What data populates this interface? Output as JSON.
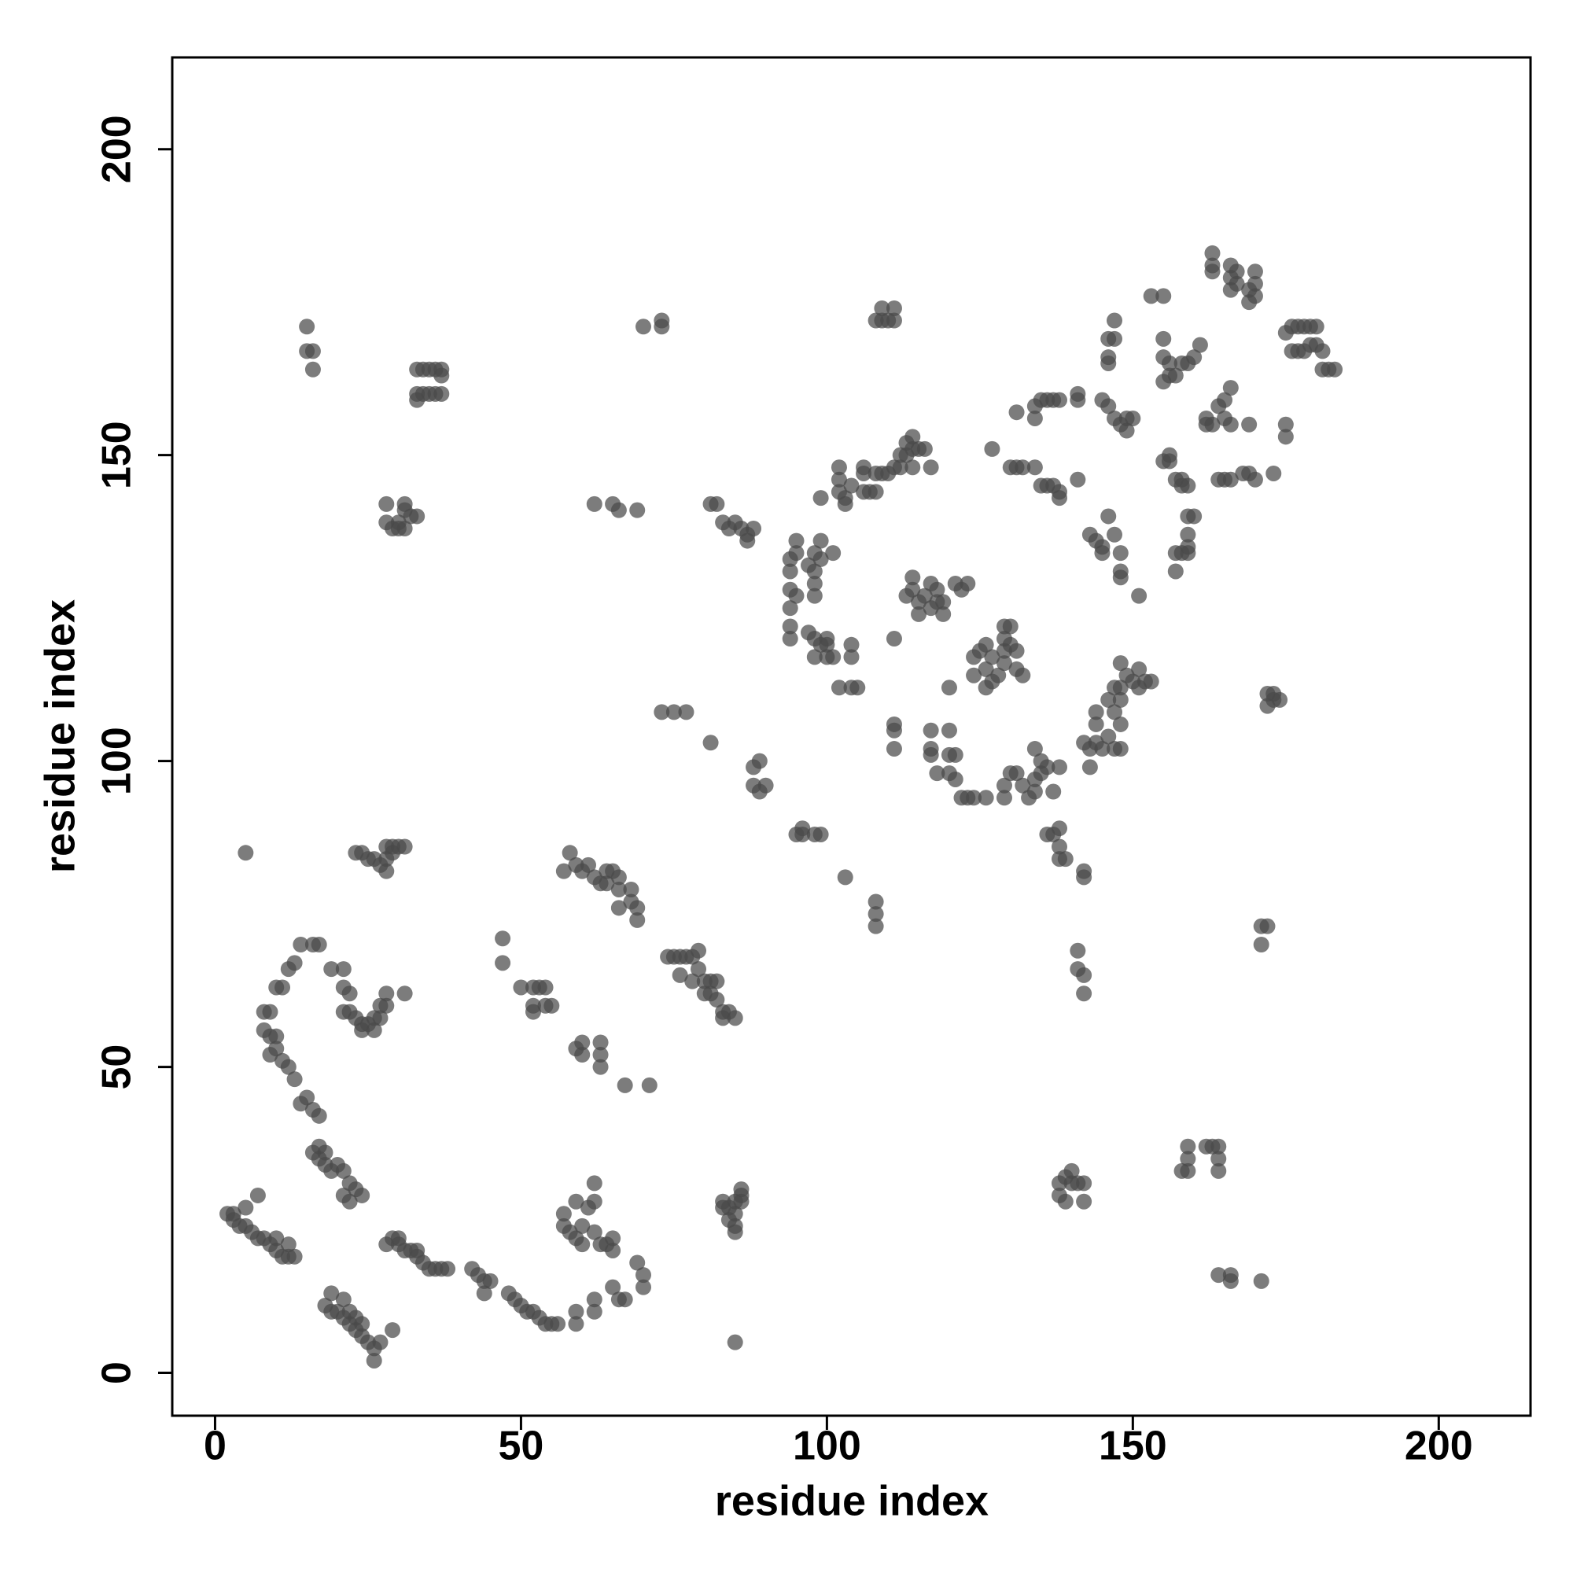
{
  "chart_data": {
    "type": "scatter",
    "x_label": "residue index",
    "y_label": "residue index",
    "color": "#4a4a4a",
    "alpha": 0.72,
    "xlim": [
      -7,
      215
    ],
    "ylim": [
      -7,
      215
    ],
    "xticks": [
      0,
      50,
      100,
      150,
      200
    ],
    "yticks": [
      0,
      50,
      100,
      150,
      200
    ],
    "x": [
      2,
      3,
      4,
      5,
      6,
      7,
      8,
      9,
      10,
      11,
      12,
      13,
      5,
      7,
      3,
      10,
      12,
      18,
      19,
      20,
      21,
      22,
      23,
      24,
      25,
      26,
      26,
      19,
      21,
      22,
      23,
      24,
      29,
      27,
      28,
      29,
      30,
      31,
      32,
      33,
      34,
      35,
      36,
      37,
      38,
      30,
      33,
      42,
      43,
      44,
      45,
      44,
      48,
      49,
      50,
      51,
      52,
      53,
      54,
      55,
      56,
      59,
      59,
      57,
      57,
      58,
      59,
      60,
      61,
      62,
      59,
      62,
      63,
      64,
      60,
      62,
      62,
      62,
      65,
      66,
      67,
      65,
      65,
      70,
      70,
      69,
      17,
      17,
      18,
      19,
      20,
      21,
      22,
      23,
      24,
      21,
      22,
      16,
      18,
      14,
      15,
      16,
      17,
      13,
      12,
      11,
      10,
      9,
      8,
      8,
      9,
      10,
      11,
      12,
      13,
      14,
      16,
      17,
      10,
      9,
      19,
      21,
      21,
      22,
      21,
      22,
      23,
      24,
      24,
      25,
      26,
      27,
      27,
      28,
      28,
      31,
      26,
      23,
      24,
      25,
      26,
      27,
      28,
      28,
      29,
      29,
      30,
      31,
      28,
      5,
      57,
      58,
      59,
      60,
      61,
      62,
      63,
      64,
      65,
      66,
      66,
      68,
      68,
      69,
      69,
      66,
      64,
      50,
      52,
      53,
      54,
      52,
      54,
      55,
      47,
      47,
      52,
      59,
      60,
      60,
      63,
      63,
      63,
      67,
      71,
      74,
      75,
      76,
      77,
      78,
      79,
      79,
      78,
      80,
      80,
      81,
      82,
      82,
      83,
      83,
      84,
      85,
      76,
      81,
      83,
      83,
      84,
      85,
      85,
      86,
      86,
      86,
      85,
      85,
      84,
      85,
      62,
      65,
      66,
      69,
      81,
      82,
      83,
      84,
      85,
      86,
      87,
      88,
      87,
      28,
      29,
      30,
      31,
      31,
      31,
      32,
      33,
      28,
      30,
      15,
      15,
      16,
      16,
      33,
      34,
      35,
      36,
      37,
      37,
      33,
      34,
      35,
      36,
      37,
      33,
      70,
      73,
      73,
      108,
      109,
      109,
      111,
      111,
      110,
      73,
      75,
      77,
      81,
      88,
      89,
      88,
      90,
      89,
      95,
      96,
      96,
      98,
      99,
      103,
      108,
      108,
      108,
      94,
      94,
      95,
      95,
      94,
      95,
      94,
      94,
      94,
      97,
      98,
      98,
      98,
      98,
      99,
      99,
      101,
      97,
      98,
      98,
      99,
      100,
      100,
      100,
      101,
      102,
      104,
      104,
      104,
      105,
      99,
      102,
      102,
      102,
      103,
      103,
      104,
      106,
      107,
      108,
      106,
      106,
      108,
      109,
      110,
      111,
      112,
      112,
      113,
      113,
      114,
      115,
      116,
      114,
      117,
      114,
      113,
      114,
      114,
      115,
      115,
      116,
      117,
      117,
      118,
      118,
      119,
      119,
      121,
      122,
      123,
      111,
      124,
      125,
      126,
      127,
      126,
      127,
      128,
      129,
      129,
      129,
      130,
      130,
      131,
      131,
      132,
      124,
      126,
      129,
      111,
      111,
      111,
      117,
      117,
      117,
      118,
      120,
      120,
      121,
      120,
      121,
      122,
      123,
      124,
      126,
      120,
      129,
      129,
      130,
      131,
      132,
      133,
      134,
      134,
      135,
      135,
      136,
      137,
      138,
      134,
      130,
      131,
      132,
      127,
      131,
      134,
      134,
      135,
      136,
      137,
      138,
      135,
      136,
      137,
      134,
      138,
      138,
      141,
      141,
      141,
      136,
      137,
      138,
      138,
      139,
      138,
      142,
      142,
      141,
      141,
      142,
      142,
      138,
      138,
      139,
      139,
      140,
      140,
      141,
      142,
      142,
      142,
      143,
      144,
      144,
      144,
      145,
      146,
      146,
      147,
      147,
      148,
      148,
      148,
      149,
      150,
      151,
      151,
      152,
      153,
      143,
      148,
      148,
      147,
      143,
      144,
      145,
      145,
      146,
      147,
      148,
      148,
      148,
      151,
      145,
      146,
      147,
      148,
      149,
      150,
      146,
      146,
      146,
      147,
      147,
      149,
      153,
      155,
      155,
      155,
      156,
      156,
      157,
      158,
      159,
      160,
      161,
      155,
      155,
      156,
      156,
      158,
      158,
      159,
      157,
      159,
      160,
      159,
      159,
      159,
      158,
      157,
      157,
      162,
      162,
      163,
      164,
      165,
      165,
      166,
      166,
      169,
      164,
      165,
      166,
      168,
      169,
      170,
      173,
      163,
      163,
      163,
      166,
      166,
      167,
      167,
      166,
      170,
      170,
      170,
      169,
      169,
      175,
      176,
      177,
      178,
      179,
      180,
      176,
      177,
      178,
      179,
      180,
      181,
      181,
      182,
      183,
      175,
      175,
      172,
      173,
      172,
      173,
      174,
      171,
      172,
      171,
      158,
      159,
      159,
      159,
      162,
      163,
      164,
      164,
      164,
      164,
      166,
      166,
      171
    ],
    "values": [
      26,
      25,
      24,
      24,
      23,
      22,
      22,
      21,
      20,
      19,
      19,
      19,
      27,
      29,
      26,
      22,
      21,
      11,
      10,
      10,
      9,
      8,
      7,
      6,
      5,
      4,
      2,
      13,
      12,
      10,
      9,
      8,
      7,
      5,
      21,
      22,
      21,
      20,
      20,
      19,
      18,
      17,
      17,
      17,
      17,
      22,
      20,
      17,
      16,
      15,
      15,
      13,
      13,
      12,
      11,
      10,
      10,
      9,
      8,
      8,
      8,
      8,
      10,
      26,
      24,
      23,
      22,
      24,
      27,
      28,
      28,
      23,
      21,
      21,
      21,
      31,
      12,
      10,
      14,
      12,
      12,
      20,
      22,
      16,
      14,
      18,
      37,
      35,
      34,
      33,
      34,
      33,
      31,
      30,
      29,
      29,
      28,
      36,
      36,
      44,
      45,
      43,
      42,
      48,
      50,
      51,
      53,
      55,
      56,
      59,
      59,
      63,
      63,
      66,
      67,
      70,
      70,
      70,
      55,
      52,
      66,
      66,
      63,
      62,
      59,
      59,
      58,
      57,
      56,
      57,
      56,
      58,
      60,
      60,
      62,
      62,
      58,
      85,
      85,
      84,
      84,
      83,
      82,
      84,
      85,
      86,
      86,
      86,
      86,
      85,
      82,
      85,
      83,
      82,
      83,
      81,
      80,
      80,
      82,
      79,
      81,
      79,
      77,
      76,
      74,
      76,
      82,
      63,
      63,
      63,
      63,
      60,
      60,
      60,
      71,
      67,
      59,
      53,
      54,
      52,
      54,
      52,
      50,
      47,
      47,
      68,
      68,
      68,
      68,
      68,
      69,
      66,
      64,
      64,
      62,
      62,
      64,
      61,
      59,
      58,
      59,
      58,
      65,
      64,
      28,
      27,
      27,
      26,
      28,
      28,
      29,
      30,
      24,
      23,
      25,
      5,
      142,
      142,
      141,
      141,
      142,
      142,
      139,
      138,
      139,
      138,
      137,
      138,
      136,
      139,
      138,
      139,
      138,
      142,
      141,
      140,
      140,
      142,
      138,
      171,
      167,
      167,
      164,
      164,
      164,
      164,
      164,
      164,
      163,
      160,
      160,
      160,
      160,
      160,
      159,
      171,
      172,
      171,
      172,
      174,
      172,
      174,
      172,
      172,
      108,
      108,
      108,
      103,
      99,
      100,
      96,
      96,
      95,
      88,
      89,
      88,
      88,
      88,
      81,
      77,
      75,
      73,
      133,
      131,
      134,
      136,
      128,
      127,
      125,
      122,
      120,
      132,
      134,
      131,
      129,
      127,
      133,
      136,
      134,
      121,
      120,
      117,
      119,
      120,
      119,
      117,
      117,
      112,
      119,
      117,
      112,
      112,
      143,
      144,
      146,
      148,
      143,
      142,
      145,
      144,
      144,
      144,
      147,
      148,
      147,
      147,
      147,
      148,
      148,
      150,
      150,
      152,
      151,
      151,
      151,
      148,
      148,
      153,
      127,
      130,
      128,
      126,
      124,
      127,
      125,
      129,
      128,
      126,
      124,
      126,
      129,
      128,
      129,
      120,
      117,
      118,
      119,
      117,
      115,
      113,
      114,
      116,
      118,
      120,
      122,
      119,
      118,
      115,
      114,
      114,
      112,
      122,
      106,
      105,
      102,
      105,
      102,
      101,
      98,
      105,
      101,
      101,
      98,
      97,
      94,
      94,
      94,
      94,
      112,
      94,
      96,
      98,
      98,
      96,
      94,
      95,
      97,
      98,
      100,
      99,
      95,
      99,
      102,
      148,
      148,
      148,
      151,
      157,
      158,
      156,
      159,
      159,
      159,
      159,
      145,
      145,
      145,
      148,
      143,
      144,
      146,
      159,
      160,
      88,
      88,
      86,
      84,
      84,
      89,
      82,
      81,
      69,
      66,
      65,
      62,
      29,
      31,
      28,
      32,
      31,
      33,
      31,
      31,
      28,
      103,
      102,
      103,
      106,
      108,
      102,
      104,
      110,
      108,
      112,
      106,
      110,
      112,
      114,
      113,
      112,
      115,
      113,
      113,
      99,
      102,
      116,
      102,
      137,
      136,
      135,
      134,
      140,
      137,
      134,
      131,
      130,
      127,
      159,
      158,
      156,
      155,
      156,
      156,
      165,
      166,
      169,
      169,
      172,
      154,
      176,
      176,
      169,
      166,
      165,
      163,
      163,
      165,
      165,
      166,
      168,
      162,
      149,
      150,
      149,
      146,
      145,
      145,
      146,
      140,
      140,
      137,
      135,
      134,
      134,
      134,
      131,
      155,
      156,
      155,
      158,
      159,
      156,
      155,
      161,
      155,
      146,
      146,
      146,
      147,
      147,
      146,
      147,
      183,
      181,
      180,
      181,
      179,
      180,
      178,
      177,
      180,
      178,
      176,
      177,
      175,
      170,
      171,
      171,
      171,
      171,
      171,
      167,
      167,
      167,
      168,
      168,
      167,
      164,
      164,
      164,
      155,
      153,
      111,
      111,
      109,
      110,
      110,
      73,
      73,
      70,
      33,
      33,
      37,
      35,
      37,
      37,
      37,
      35,
      33,
      16,
      16,
      15,
      15
    ]
  }
}
